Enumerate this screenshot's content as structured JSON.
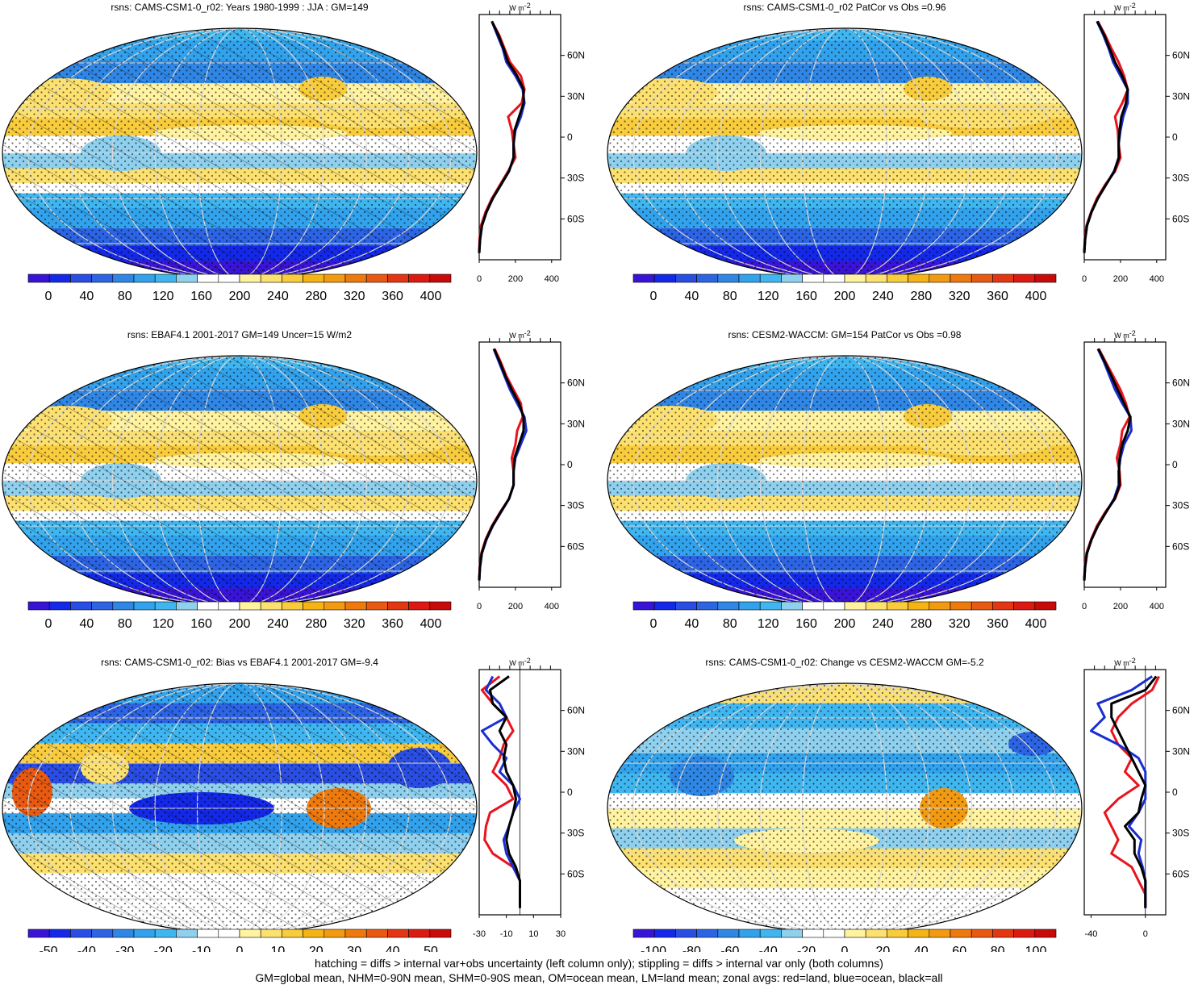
{
  "panels": [
    {
      "title": "rsns: CAMS-CSM1-0_r02: Years 1980-1999 : JJA : GM=149",
      "field": "clim",
      "hatch": true,
      "stipple": true,
      "colorbar_labels": [
        "0",
        "40",
        "80",
        "120",
        "160",
        "200",
        "240",
        "280",
        "320",
        "360",
        "400"
      ],
      "zonal_ticks": [
        "0",
        "200",
        "400"
      ],
      "zonal_range": [
        0,
        450
      ],
      "zonal_zero": false
    },
    {
      "title": "rsns: CAMS-CSM1-0_r02 PatCor vs Obs =0.96",
      "field": "clim",
      "hatch": false,
      "stipple": true,
      "colorbar_labels": [
        "0",
        "40",
        "80",
        "120",
        "160",
        "200",
        "240",
        "280",
        "320",
        "360",
        "400"
      ],
      "zonal_ticks": [
        "0",
        "200",
        "400"
      ],
      "zonal_range": [
        0,
        450
      ],
      "zonal_zero": false
    },
    {
      "title": "rsns: EBAF4.1 2001-2017 GM=149 Uncer=15 W/m2",
      "field": "clim",
      "hatch": true,
      "stipple": true,
      "colorbar_labels": [
        "0",
        "40",
        "80",
        "120",
        "160",
        "200",
        "240",
        "280",
        "320",
        "360",
        "400"
      ],
      "zonal_ticks": [
        "0",
        "200",
        "400"
      ],
      "zonal_range": [
        0,
        450
      ],
      "zonal_zero": false
    },
    {
      "title": "rsns: CESM2-WACCM: GM=154 PatCor vs Obs =0.98",
      "field": "clim",
      "hatch": false,
      "stipple": true,
      "colorbar_labels": [
        "0",
        "40",
        "80",
        "120",
        "160",
        "200",
        "240",
        "280",
        "320",
        "360",
        "400"
      ],
      "zonal_ticks": [
        "0",
        "200",
        "400"
      ],
      "zonal_range": [
        0,
        450
      ],
      "zonal_zero": false
    },
    {
      "title": "rsns: CAMS-CSM1-0_r02: Bias vs EBAF4.1 2001-2017 GM=-9.4",
      "field": "bias",
      "hatch": true,
      "stipple": true,
      "colorbar_labels": [
        "-50",
        "-40",
        "-30",
        "-20",
        "-10",
        "0",
        "10",
        "20",
        "30",
        "40",
        "50"
      ],
      "zonal_ticks": [
        "-30",
        "-10",
        "10",
        "30"
      ],
      "zonal_range": [
        -30,
        30
      ],
      "zonal_zero": true
    },
    {
      "title": "rsns: CAMS-CSM1-0_r02: Change vs CESM2-WACCM GM=-5.2",
      "field": "change",
      "hatch": false,
      "stipple": true,
      "colorbar_labels": [
        "-100",
        "-80",
        "-60",
        "-40",
        "-20",
        "0",
        "20",
        "40",
        "60",
        "80",
        "100"
      ],
      "zonal_ticks": [
        "-40",
        "0"
      ],
      "zonal_range": [
        -45,
        15
      ],
      "zonal_zero": true
    }
  ],
  "zonal_unit": "W m",
  "zonal_unit_exp": "-2",
  "lat_labels": [
    "60N",
    "30N",
    "0",
    "30S",
    "60S"
  ],
  "lat_values": [
    60,
    30,
    0,
    -30,
    -60
  ],
  "colors": {
    "land": "#e8141e",
    "ocean": "#1a2ed0",
    "all": "#000000",
    "palette": [
      "#3a14d6",
      "#1428e8",
      "#2a4ee4",
      "#2c64e4",
      "#2f86e4",
      "#32a2ec",
      "#40b6f0",
      "#8ed0ee",
      "#ffffff",
      "#ffffff",
      "#fff2a0",
      "#fce070",
      "#f8cc3c",
      "#f6b414",
      "#f29a12",
      "#ee7a0e",
      "#e85a12",
      "#e43612",
      "#dc1a12",
      "#c80a0a"
    ]
  },
  "chart_data": {
    "type": "heatmap",
    "zonal_profiles": {
      "lat": [
        85,
        75,
        65,
        55,
        45,
        35,
        25,
        15,
        5,
        -5,
        -15,
        -25,
        -35,
        -45,
        -55,
        -65,
        -75,
        -85
      ],
      "panel1": {
        "land": [
          70,
          110,
          140,
          170,
          230,
          250,
          235,
          160,
          180,
          190,
          200,
          160,
          115,
          70,
          35,
          10,
          2,
          0
        ],
        "ocean": [
          70,
          100,
          130,
          150,
          200,
          240,
          250,
          230,
          200,
          190,
          190,
          165,
          120,
          75,
          40,
          15,
          5,
          0
        ],
        "all": [
          70,
          105,
          135,
          160,
          210,
          245,
          245,
          220,
          195,
          190,
          190,
          165,
          120,
          75,
          40,
          15,
          5,
          0
        ]
      },
      "panel2": {
        "land": [
          75,
          115,
          150,
          190,
          220,
          240,
          210,
          170,
          185,
          190,
          200,
          170,
          115,
          70,
          38,
          12,
          3,
          0
        ],
        "ocean": [
          70,
          105,
          135,
          160,
          200,
          240,
          240,
          215,
          200,
          190,
          190,
          165,
          120,
          75,
          40,
          15,
          5,
          0
        ],
        "all": [
          72,
          110,
          140,
          170,
          210,
          240,
          230,
          205,
          195,
          190,
          192,
          166,
          120,
          75,
          40,
          15,
          5,
          0
        ]
      },
      "panel3": {
        "land": [
          85,
          120,
          150,
          190,
          230,
          240,
          210,
          200,
          180,
          190,
          190,
          165,
          115,
          70,
          35,
          12,
          3,
          0
        ],
        "ocean": [
          80,
          110,
          140,
          170,
          210,
          250,
          260,
          230,
          200,
          190,
          190,
          165,
          120,
          75,
          40,
          15,
          5,
          0
        ],
        "all": [
          82,
          115,
          145,
          180,
          220,
          245,
          245,
          220,
          195,
          190,
          190,
          165,
          118,
          73,
          38,
          14,
          4,
          0
        ]
      },
      "panel4": {
        "land": [
          80,
          120,
          160,
          200,
          230,
          250,
          210,
          200,
          180,
          195,
          200,
          170,
          115,
          70,
          38,
          12,
          3,
          0
        ],
        "ocean": [
          75,
          110,
          140,
          170,
          210,
          255,
          260,
          220,
          200,
          190,
          190,
          165,
          120,
          75,
          40,
          15,
          5,
          0
        ],
        "all": [
          78,
          115,
          150,
          185,
          220,
          255,
          240,
          210,
          195,
          192,
          195,
          168,
          120,
          75,
          40,
          15,
          5,
          0
        ]
      },
      "panel5": {
        "land": [
          -15,
          -28,
          -20,
          -10,
          -5,
          -12,
          -15,
          -20,
          -10,
          -5,
          -22,
          -25,
          -26,
          -20,
          -5,
          0,
          0,
          0
        ],
        "ocean": [
          -20,
          -25,
          -15,
          -10,
          -28,
          -20,
          -10,
          -15,
          -5,
          0,
          -5,
          -8,
          -12,
          -10,
          -5,
          0,
          0,
          0
        ],
        "all": [
          -8,
          -22,
          -20,
          -10,
          -15,
          -10,
          -12,
          -10,
          -5,
          -3,
          -5,
          -8,
          -10,
          -8,
          -3,
          0,
          0,
          0
        ]
      },
      "panel6": {
        "land": [
          10,
          5,
          -10,
          -20,
          -25,
          -20,
          -10,
          -15,
          -5,
          -20,
          -30,
          -25,
          -20,
          -25,
          -10,
          -5,
          0,
          0
        ],
        "ocean": [
          5,
          -10,
          -35,
          -30,
          -40,
          -20,
          -5,
          0,
          0,
          0,
          -5,
          -12,
          -3,
          -5,
          -2,
          0,
          0,
          0
        ],
        "all": [
          8,
          0,
          -25,
          -25,
          -20,
          -15,
          -10,
          -5,
          0,
          -3,
          -5,
          -15,
          -8,
          -8,
          -3,
          0,
          0,
          0
        ]
      }
    }
  },
  "footer": {
    "line1": "hatching = diffs > internal var+obs uncertainty (left column only); stippling = diffs > internal var only (both columns)",
    "line2": "GM=global mean, NHM=0-90N mean, SHM=0-90S mean, OM=ocean mean, LM=land mean; zonal avgs: red=land, blue=ocean, black=all"
  }
}
